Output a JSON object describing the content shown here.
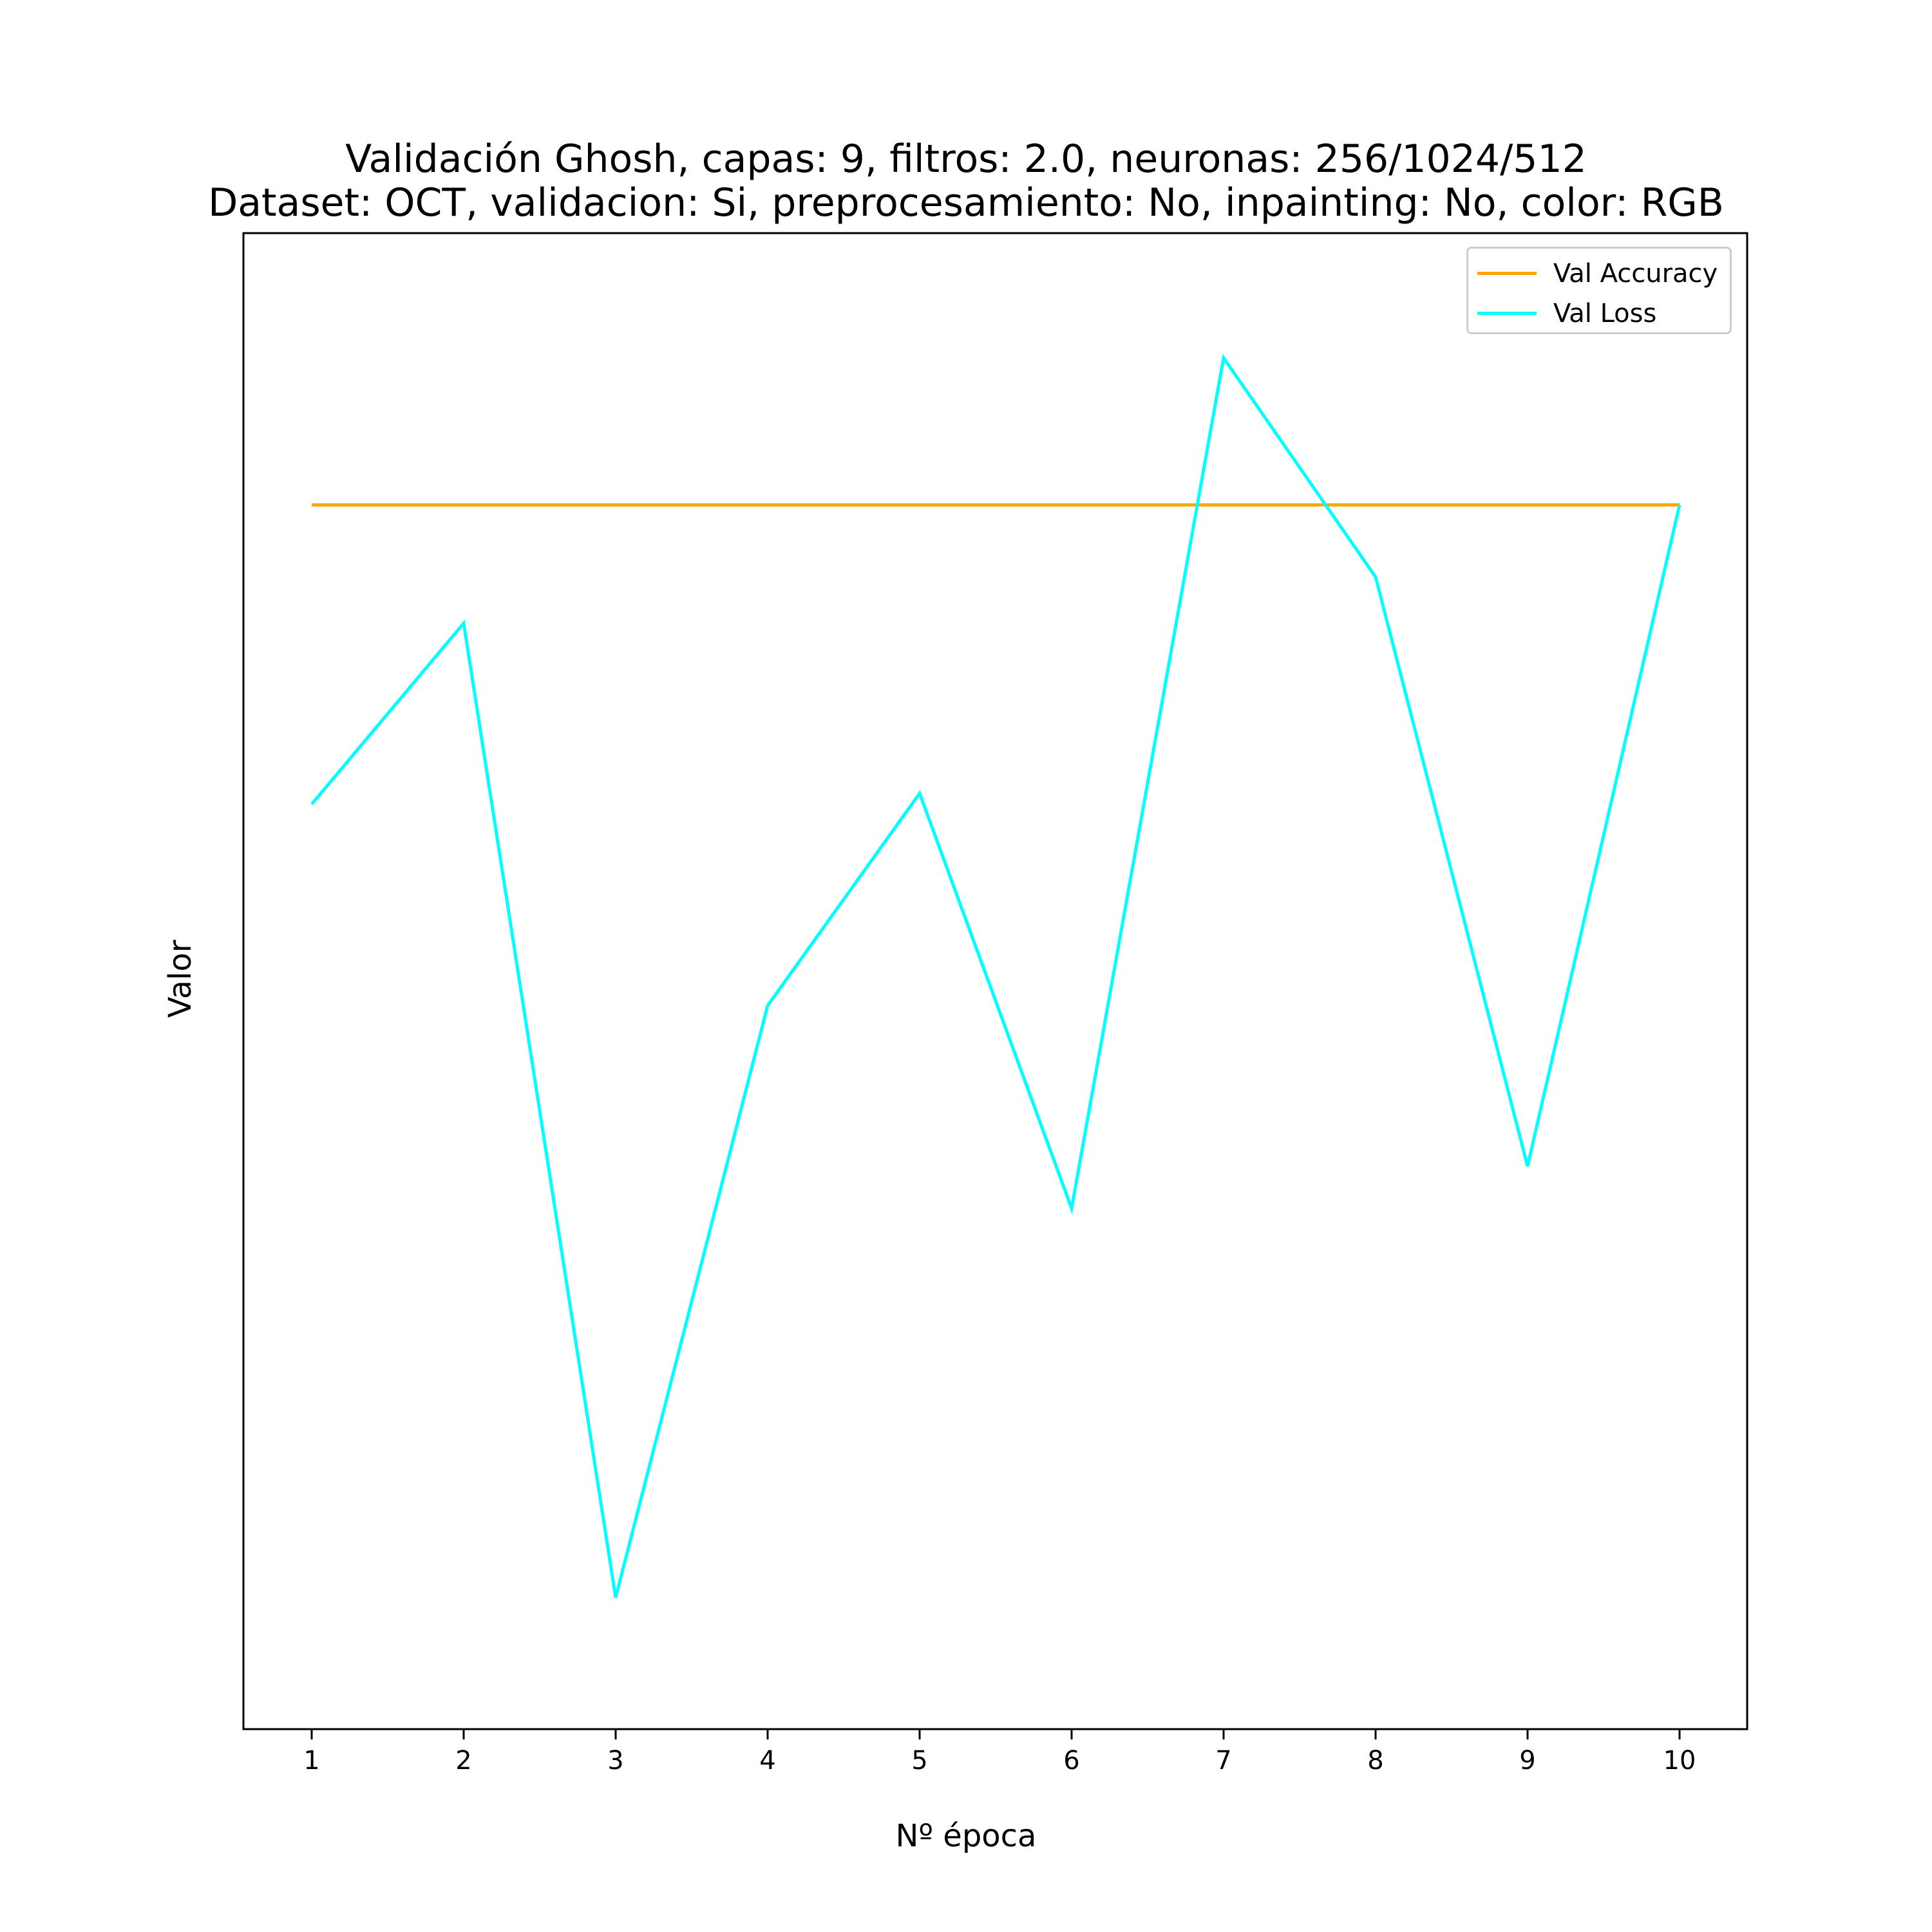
{
  "title": {
    "line1": "Validación Ghosh, capas: 9, filtros: 2.0, neuronas: 256/1024/512",
    "line2": "Dataset: OCT, validacion: Si, preprocesamiento: No, inpainting: No, color: RGB"
  },
  "chart_data": {
    "type": "line",
    "title": "Validación Ghosh, capas: 9, filtros: 2.0, neuronas: 256/1024/512\nDataset: OCT, validacion: Si, preprocesamiento: No, inpainting: No, color: RGB",
    "xlabel": "Nº época",
    "ylabel": "Valor",
    "x": [
      1,
      2,
      3,
      4,
      5,
      6,
      7,
      8,
      9,
      10
    ],
    "ylim": [
      0,
      1
    ],
    "y_ticks_shown": false,
    "grid": false,
    "legend_position": "top-right",
    "series": [
      {
        "name": "Val Accuracy",
        "color": "#FFA500",
        "values": [
          0.85,
          0.85,
          0.85,
          0.85,
          0.85,
          0.85,
          0.85,
          0.85,
          0.85,
          0.85
        ]
      },
      {
        "name": "Val Loss",
        "color": "#00FFFF",
        "values": [
          0.63,
          0.763,
          0.047,
          0.482,
          0.638,
          0.333,
          0.958,
          0.797,
          0.364,
          0.85
        ]
      }
    ]
  }
}
